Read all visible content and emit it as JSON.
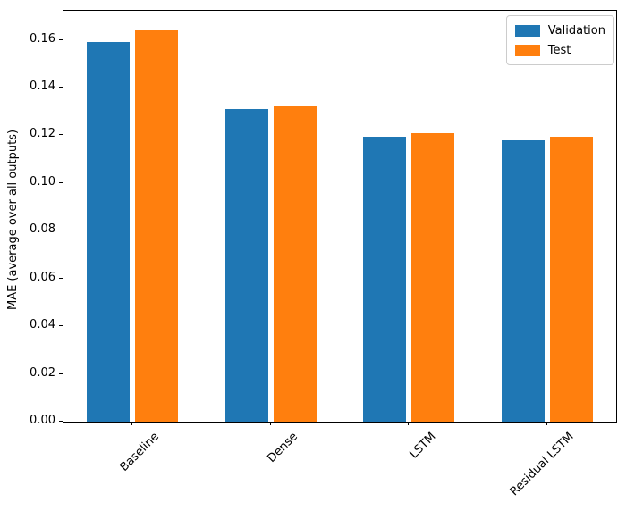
{
  "chart_data": {
    "type": "bar",
    "title": "",
    "xlabel": "",
    "ylabel": "MAE (average over all outputs)",
    "categories": [
      "Baseline",
      "Dense",
      "LSTM",
      "Residual LSTM"
    ],
    "series": [
      {
        "name": "Validation",
        "color": "#1f77b4",
        "values": [
          0.159,
          0.131,
          0.1195,
          0.118
        ]
      },
      {
        "name": "Test",
        "color": "#ff7f0e",
        "values": [
          0.164,
          0.132,
          0.121,
          0.1195
        ]
      }
    ],
    "ylim": [
      0,
      0.1722
    ],
    "yticks": {
      "values": [
        0.0,
        0.02,
        0.04,
        0.06,
        0.08,
        0.1,
        0.12,
        0.14,
        0.16
      ],
      "labels": [
        "0.00",
        "0.02",
        "0.04",
        "0.06",
        "0.08",
        "0.10",
        "0.12",
        "0.14",
        "0.16"
      ]
    },
    "legend": {
      "position": "upper right",
      "entries": [
        "Validation",
        "Test"
      ]
    },
    "grid": false,
    "axis_color": "#000000",
    "background_color": "#ffffff"
  }
}
